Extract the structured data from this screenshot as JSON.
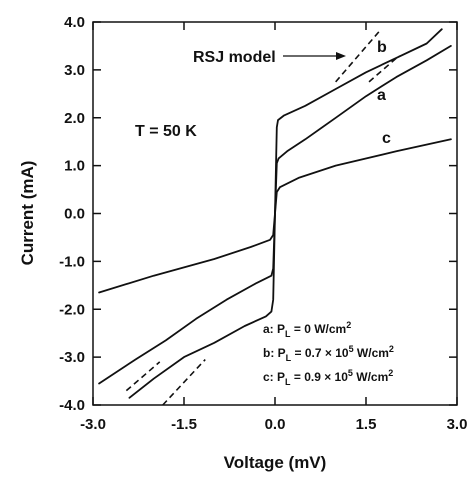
{
  "chart_data": {
    "type": "line",
    "xlabel": "Voltage (mV)",
    "ylabel": "Current (mA)",
    "xlim": [
      -3.0,
      3.0
    ],
    "ylim": [
      -4.0,
      4.0
    ],
    "x_ticks": [
      "-3.0",
      "-1.5",
      "0.0",
      "1.5",
      "3.0"
    ],
    "x_tick_values": [
      -3.0,
      -1.5,
      0.0,
      1.5,
      3.0
    ],
    "y_ticks": [
      "4.0",
      "3.0",
      "2.0",
      "1.0",
      "0.0",
      "-1.0",
      "-2.0",
      "-3.0",
      "-4.0"
    ],
    "y_tick_values": [
      4.0,
      3.0,
      2.0,
      1.0,
      0.0,
      -1.0,
      -2.0,
      -3.0,
      -4.0
    ],
    "grid": false,
    "series": [
      {
        "name": "a",
        "points": [
          [
            -2.4,
            -3.85
          ],
          [
            -2.0,
            -3.45
          ],
          [
            -1.5,
            -3.0
          ],
          [
            -1.0,
            -2.7
          ],
          [
            -0.5,
            -2.35
          ],
          [
            -0.15,
            -2.15
          ],
          [
            -0.06,
            -2.05
          ],
          [
            -0.03,
            -1.8
          ],
          [
            0.0,
            0.0
          ],
          [
            0.03,
            1.8
          ],
          [
            0.05,
            1.95
          ],
          [
            0.15,
            2.05
          ],
          [
            0.5,
            2.25
          ],
          [
            1.0,
            2.6
          ],
          [
            1.5,
            2.95
          ],
          [
            2.0,
            3.25
          ],
          [
            2.5,
            3.55
          ],
          [
            2.75,
            3.85
          ]
        ]
      },
      {
        "name": "b",
        "points": [
          [
            -2.9,
            -3.55
          ],
          [
            -2.3,
            -3.05
          ],
          [
            -1.8,
            -2.65
          ],
          [
            -1.3,
            -2.2
          ],
          [
            -0.8,
            -1.8
          ],
          [
            -0.3,
            -1.45
          ],
          [
            -0.06,
            -1.3
          ],
          [
            -0.03,
            -1.15
          ],
          [
            0.0,
            0.0
          ],
          [
            0.03,
            1.05
          ],
          [
            0.06,
            1.15
          ],
          [
            0.2,
            1.3
          ],
          [
            0.5,
            1.55
          ],
          [
            1.0,
            2.0
          ],
          [
            1.5,
            2.45
          ],
          [
            2.0,
            2.85
          ],
          [
            2.5,
            3.2
          ],
          [
            2.9,
            3.5
          ]
        ]
      },
      {
        "name": "c",
        "points": [
          [
            -2.9,
            -1.65
          ],
          [
            -2.0,
            -1.3
          ],
          [
            -1.0,
            -0.95
          ],
          [
            -0.4,
            -0.7
          ],
          [
            -0.08,
            -0.55
          ],
          [
            -0.03,
            -0.45
          ],
          [
            0.0,
            0.0
          ],
          [
            0.03,
            0.45
          ],
          [
            0.08,
            0.55
          ],
          [
            0.4,
            0.75
          ],
          [
            1.0,
            1.0
          ],
          [
            2.0,
            1.3
          ],
          [
            2.9,
            1.55
          ]
        ]
      }
    ],
    "rsj_model_lines": [
      {
        "points": [
          [
            1.0,
            2.75
          ],
          [
            1.75,
            3.85
          ]
        ]
      },
      {
        "points": [
          [
            -1.85,
            -4.0
          ],
          [
            -1.15,
            -3.05
          ]
        ]
      },
      {
        "points": [
          [
            1.55,
            2.75
          ],
          [
            2.05,
            3.3
          ]
        ]
      },
      {
        "points": [
          [
            -2.45,
            -3.7
          ],
          [
            -1.9,
            -3.1
          ]
        ]
      }
    ],
    "annotations": {
      "rsj_label": "RSJ model",
      "temperature": "T = 50 K",
      "curve_a": "a",
      "curve_b": "b",
      "curve_c": "c"
    },
    "legend": {
      "placement": "bottom-right",
      "entries": [
        {
          "prefix": "a: P",
          "sub": "L",
          "mid": " = 0 W/cm",
          "sup": "2",
          "exp": ""
        },
        {
          "prefix": "b: P",
          "sub": "L",
          "mid": " = 0.7 × 10",
          "sup": "5",
          "exp": " W/cm",
          "sup2": "2"
        },
        {
          "prefix": "c: P",
          "sub": "L",
          "mid": " = 0.9 × 10",
          "sup": "5",
          "exp": " W/cm",
          "sup2": "2"
        }
      ]
    }
  }
}
